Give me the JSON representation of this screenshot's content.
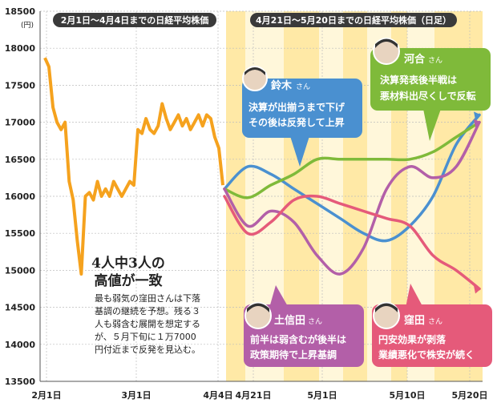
{
  "chart_data": {
    "type": "line",
    "y_unit": "(円)",
    "ylim": [
      13500,
      18500
    ],
    "y_ticks": [
      13500,
      14000,
      14500,
      15000,
      15500,
      16000,
      16500,
      17000,
      17500,
      18000,
      18500
    ],
    "x_ticks_left": [
      "2月1日",
      "3月1日",
      "4月4日"
    ],
    "x_ticks_right": [
      "4月21日",
      "5月1日",
      "5月10日",
      "5月20日"
    ],
    "panel_left_title": "2月1日〜4月4日までの日経平均株価",
    "panel_right_title": "4月21日〜5月20日までの日経平均株価（日足）",
    "grid": true,
    "actual": {
      "color": "#f5a21e",
      "values": [
        17870,
        17750,
        17200,
        17000,
        16900,
        17000,
        16200,
        15950,
        15400,
        14950,
        16000,
        16050,
        15950,
        16200,
        16000,
        16100,
        16000,
        16200,
        16100,
        16000,
        16100,
        16200,
        16150,
        16900,
        16850,
        17050,
        16900,
        16850,
        16950,
        17250,
        17050,
        16900,
        17000,
        17100,
        16950,
        17050,
        16900,
        17000,
        17100,
        16950,
        17100,
        17050,
        16800,
        16650,
        16150
      ]
    },
    "forecasts": [
      {
        "name": "鈴木",
        "color": "#4a90d0",
        "values": [
          16100,
          16400,
          16300,
          16100,
          15900,
          15700,
          15500,
          15400,
          15600,
          16000,
          16700,
          17100
        ]
      },
      {
        "name": "河合",
        "color": "#7fba3a",
        "values": [
          16100,
          15980,
          16150,
          16300,
          16500,
          16500,
          16500,
          16500,
          16500,
          16600,
          16800,
          17000
        ]
      },
      {
        "name": "土信田",
        "color": "#b35fa8",
        "values": [
          16100,
          15600,
          15800,
          15650,
          15200,
          14950,
          15300,
          16100,
          16400,
          16250,
          16400,
          17000
        ]
      },
      {
        "name": "窪田",
        "color": "#e55a7a",
        "values": [
          16000,
          15500,
          15650,
          15950,
          16000,
          15900,
          15800,
          15700,
          15600,
          15200,
          15000,
          14750
        ]
      }
    ]
  },
  "callouts": {
    "suzuki": {
      "name": "鈴木",
      "honorific": "さん",
      "line1": "決算が出揃うまで下げ",
      "line2": "その後は反発して上昇",
      "color": "#4a90d0"
    },
    "kawai": {
      "name": "河合",
      "honorific": "さん",
      "line1": "決算発表後半戦は",
      "line2": "悪材料出尽くしで反転",
      "color": "#7fba3a"
    },
    "toshinda": {
      "name": "土信田",
      "honorific": "さん",
      "line1": "前半は弱含むが後半は",
      "line2": "政策期待で上昇基調",
      "color": "#b35fa8"
    },
    "kubota": {
      "name": "窪田",
      "honorific": "さん",
      "line1": "円安効果が剥落",
      "line2": "業績悪化で株安が続く",
      "color": "#e55a7a"
    }
  },
  "summary": {
    "headline1": "4人中3人の",
    "headline2": "高値が一致",
    "body": [
      "最も弱気の窪田さんは下落",
      "基調の継続を予想。残る３",
      "人も弱含む展開を想定する",
      "が、５月下旬に１万7000",
      "円付近まで反発を見込む。"
    ]
  }
}
